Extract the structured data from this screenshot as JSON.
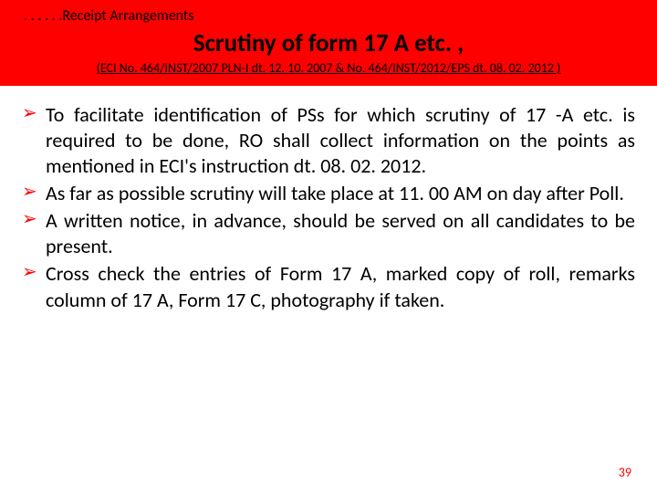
{
  "header": {
    "breadcrumb": ". . . . . .Receipt Arrangements",
    "title": "Scrutiny of form 17 A etc. ,",
    "subtitle": "(ECI No. 464/INST/2007 PLN-I dt. 12. 10. 2007 & No. 464/INST/2012/EPS dt. 08. 02. 2012 )"
  },
  "bullets": [
    "To facilitate identification of PSs for which scrutiny of 17 -A etc. is required to be done, RO shall collect information on the points as mentioned in ECI's instruction dt. 08. 02. 2012.",
    "As far as possible scrutiny will take place at 11. 00 AM on day after Poll.",
    "A written notice, in advance, should be served on all candidates to be present.",
    "Cross check the entries of Form 17 A, marked copy of roll, remarks column of 17 A, Form 17 C, photography if taken."
  ],
  "page_number": "39",
  "style": {
    "header_bg": "#ff0000",
    "bullet_color": "#ff0000",
    "text_color": "#000000",
    "page_num_color": "#ff0000",
    "breadcrumb_fontsize": 16,
    "title_fontsize": 27,
    "subtitle_fontsize": 14,
    "body_fontsize": 22,
    "page_num_fontsize": 14
  }
}
